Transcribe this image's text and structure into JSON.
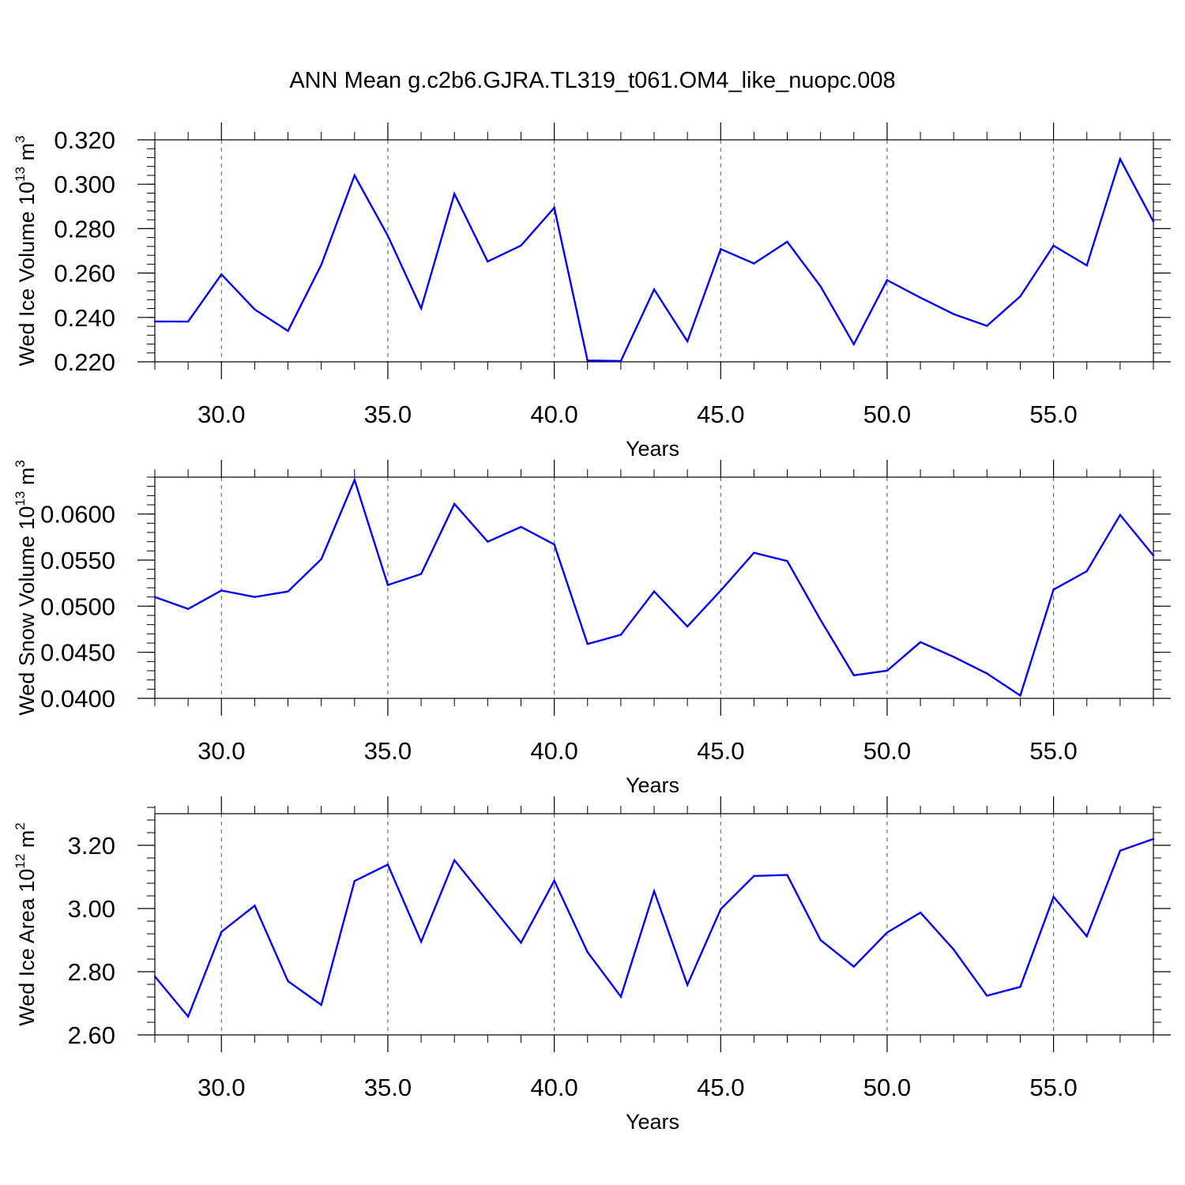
{
  "title": "ANN Mean g.c2b6.GJRA.TL319_t061.OM4_like_nuopc.008",
  "line_color": "#0000ff",
  "chart_data": [
    {
      "type": "line",
      "ylabel_main": "Wed Ice Volume 10",
      "ylabel_exp1": "13",
      "ylabel_unit": " m",
      "ylabel_exp2": "3",
      "xlabel": "Years",
      "xlim": [
        28,
        58
      ],
      "ylim": [
        0.22,
        0.32
      ],
      "yticks": [
        0.22,
        0.24,
        0.26,
        0.28,
        0.3,
        0.32
      ],
      "ytick_labels": [
        "0.220",
        "0.240",
        "0.260",
        "0.280",
        "0.300",
        "0.320"
      ],
      "xticks": [
        30,
        35,
        40,
        45,
        50,
        55
      ],
      "xtick_labels": [
        "30.0",
        "35.0",
        "40.0",
        "45.0",
        "50.0",
        "55.0"
      ],
      "x": [
        28,
        29,
        30,
        31,
        32,
        33,
        34,
        35,
        36,
        37,
        38,
        39,
        40,
        41,
        42,
        43,
        44,
        45,
        46,
        47,
        48,
        49,
        50,
        51,
        52,
        53,
        54,
        55,
        56,
        57,
        58
      ],
      "values": [
        0.2382,
        0.2381,
        0.2594,
        0.2436,
        0.2339,
        0.2637,
        0.304,
        0.2768,
        0.2441,
        0.2957,
        0.2652,
        0.2724,
        0.2894,
        0.2206,
        0.2204,
        0.2526,
        0.2292,
        0.2708,
        0.2643,
        0.2741,
        0.254,
        0.2279,
        0.2568,
        0.2489,
        0.2415,
        0.2362,
        0.2495,
        0.2723,
        0.2634,
        0.3113,
        0.2832
      ]
    },
    {
      "type": "line",
      "ylabel_main": "Wed Snow Volume 10",
      "ylabel_exp1": "13",
      "ylabel_unit": " m",
      "ylabel_exp2": "3",
      "xlabel": "Years",
      "xlim": [
        28,
        58
      ],
      "ylim": [
        0.04,
        0.064
      ],
      "yticks": [
        0.04,
        0.045,
        0.05,
        0.055,
        0.06
      ],
      "ytick_labels": [
        "0.0400",
        "0.0450",
        "0.0500",
        "0.0550",
        "0.0600"
      ],
      "xticks": [
        30,
        35,
        40,
        45,
        50,
        55
      ],
      "xtick_labels": [
        "30.0",
        "35.0",
        "40.0",
        "45.0",
        "50.0",
        "55.0"
      ],
      "x": [
        28,
        29,
        30,
        31,
        32,
        33,
        34,
        35,
        36,
        37,
        38,
        39,
        40,
        41,
        42,
        43,
        44,
        45,
        46,
        47,
        48,
        49,
        50,
        51,
        52,
        53,
        54,
        55,
        56,
        57,
        58
      ],
      "values": [
        0.051,
        0.0497,
        0.0517,
        0.051,
        0.0516,
        0.0551,
        0.0637,
        0.0523,
        0.0535,
        0.0611,
        0.057,
        0.0586,
        0.0567,
        0.0459,
        0.0469,
        0.0516,
        0.0478,
        0.0517,
        0.0558,
        0.0549,
        0.0485,
        0.0425,
        0.043,
        0.0461,
        0.0445,
        0.0427,
        0.0403,
        0.0518,
        0.0538,
        0.0599,
        0.0555
      ]
    },
    {
      "type": "line",
      "ylabel_main": "Wed Ice Area 10",
      "ylabel_exp1": "12",
      "ylabel_unit": " m",
      "ylabel_exp2": "2",
      "xlabel": "Years",
      "xlim": [
        28,
        58
      ],
      "ylim": [
        2.6,
        3.3
      ],
      "yticks": [
        2.6,
        2.8,
        3.0,
        3.2
      ],
      "ytick_labels": [
        "2.60",
        "2.80",
        "3.00",
        "3.20"
      ],
      "xticks": [
        30,
        35,
        40,
        45,
        50,
        55
      ],
      "xtick_labels": [
        "30.0",
        "35.0",
        "40.0",
        "45.0",
        "50.0",
        "55.0"
      ],
      "x": [
        28,
        29,
        30,
        31,
        32,
        33,
        34,
        35,
        36,
        37,
        38,
        39,
        40,
        41,
        42,
        43,
        44,
        45,
        46,
        47,
        48,
        49,
        50,
        51,
        52,
        53,
        54,
        55,
        56,
        57,
        58
      ],
      "values": [
        2.785,
        2.658,
        2.926,
        3.009,
        2.77,
        2.695,
        3.087,
        3.139,
        2.895,
        3.153,
        3.022,
        2.892,
        3.088,
        2.862,
        2.721,
        3.055,
        2.758,
        2.998,
        3.103,
        3.106,
        2.9,
        2.816,
        2.924,
        2.987,
        2.87,
        2.724,
        2.752,
        3.037,
        2.912,
        3.183,
        3.22
      ]
    }
  ]
}
